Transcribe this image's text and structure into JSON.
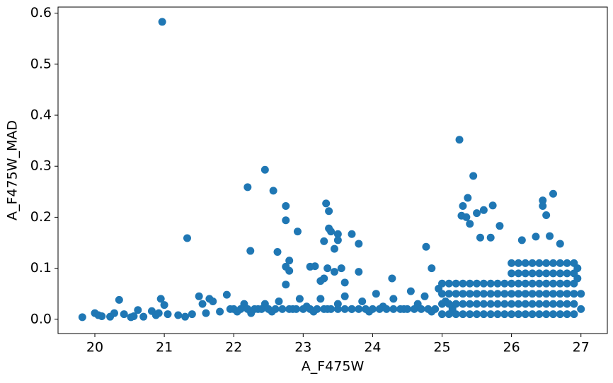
{
  "chart_data": {
    "type": "scatter",
    "xlabel": "A_F475W",
    "ylabel": "A_F475W_MAD",
    "color": "#1f77b4",
    "xlim": [
      19.47,
      27.38
    ],
    "ylim": [
      -0.028,
      0.612
    ],
    "xticks": [
      20,
      21,
      22,
      23,
      24,
      25,
      26,
      27
    ],
    "yticks": [
      {
        "value": 0,
        "label": "0.0"
      },
      0.1,
      0.2,
      0.3,
      0.4,
      0.5,
      0.6
    ],
    "x": [
      20.97,
      25.25,
      22.45,
      25.45,
      22.2,
      22.57,
      26.6,
      25.37,
      26.45,
      26.45,
      25.3,
      23.33,
      22.75,
      25.73,
      23.37,
      25.6,
      25.5,
      25.28,
      26.5,
      25.35,
      22.75,
      25.4,
      25.83,
      23.37,
      21.33,
      22.92,
      23.4,
      23.5,
      23.7,
      23.5,
      23.8,
      23.3,
      22.24,
      22.63,
      24.77,
      26.35,
      26.55,
      26.15,
      26.7,
      25.7,
      25.55,
      23.45,
      22.8,
      22.75,
      22.8,
      23.1,
      23.17,
      23.35,
      23.45,
      23.55,
      23.8,
      24.28,
      24.85,
      23.3,
      23.25,
      23.6,
      22.75,
      20.95,
      20.35,
      21.5,
      21.9,
      21.65,
      19.82,
      20.0,
      20.05,
      20.1,
      20.22,
      20.28,
      20.42,
      20.52,
      20.56,
      20.62,
      20.7,
      20.82,
      20.88,
      20.92,
      21.0,
      21.05,
      21.2,
      21.3,
      21.4,
      21.55,
      21.6,
      21.7,
      21.8,
      21.95,
      22.05,
      22.15,
      22.25,
      22.35,
      22.45,
      22.55,
      22.65,
      22.85,
      22.95,
      23.05,
      23.15,
      23.25,
      23.35,
      23.5,
      23.6,
      23.7,
      23.85,
      23.95,
      24.05,
      24.15,
      24.3,
      24.45,
      24.55,
      24.65,
      24.75,
      24.85,
      24.95,
      25.05,
      25.15,
      25.0,
      25.1,
      25.2,
      25.3,
      25.4,
      25.5,
      25.6,
      25.7,
      25.8,
      25.9,
      26.0,
      26.1,
      26.2,
      26.3,
      26.4,
      26.5,
      26.6,
      26.7,
      26.8,
      26.9,
      25.0,
      25.1,
      25.2,
      25.3,
      25.4,
      25.5,
      25.6,
      25.7,
      25.8,
      25.9,
      26.0,
      26.1,
      26.2,
      26.3,
      26.4,
      26.5,
      26.6,
      26.7,
      26.8,
      26.9,
      25.0,
      25.1,
      25.2,
      25.3,
      25.4,
      25.5,
      25.6,
      25.7,
      25.8,
      25.9,
      26.0,
      26.1,
      26.2,
      26.3,
      26.4,
      26.5,
      26.6,
      26.7,
      26.8,
      26.9,
      25.0,
      25.1,
      25.2,
      25.3,
      25.4,
      25.5,
      25.6,
      25.7,
      25.8,
      25.9,
      26.0,
      26.1,
      26.2,
      26.3,
      26.4,
      26.5,
      26.6,
      26.7,
      26.8,
      26.9,
      26.0,
      26.1,
      26.2,
      26.3,
      26.4,
      26.5,
      26.6,
      26.7,
      26.8,
      26.9,
      26.0,
      26.1,
      26.2,
      26.3,
      26.4,
      26.5,
      26.6,
      26.7,
      26.8,
      26.9,
      22.0,
      22.1,
      22.2,
      22.3,
      22.4,
      22.5,
      22.6,
      22.7,
      22.8,
      22.9,
      23.0,
      23.1,
      23.2,
      23.3,
      23.4,
      23.5,
      23.6,
      23.7,
      23.8,
      23.9,
      24.0,
      24.1,
      24.2,
      24.3,
      24.4,
      24.5,
      24.6,
      24.7,
      24.8,
      24.9,
      27.0,
      27.0,
      26.95,
      26.95
    ],
    "values": [
      0.583,
      0.352,
      0.293,
      0.281,
      0.259,
      0.252,
      0.246,
      0.238,
      0.233,
      0.222,
      0.222,
      0.227,
      0.222,
      0.223,
      0.212,
      0.214,
      0.208,
      0.203,
      0.204,
      0.2,
      0.194,
      0.187,
      0.183,
      0.178,
      0.159,
      0.172,
      0.172,
      0.167,
      0.167,
      0.155,
      0.148,
      0.153,
      0.134,
      0.132,
      0.142,
      0.162,
      0.163,
      0.155,
      0.148,
      0.16,
      0.16,
      0.138,
      0.115,
      0.103,
      0.095,
      0.103,
      0.104,
      0.1,
      0.093,
      0.1,
      0.093,
      0.08,
      0.1,
      0.08,
      0.075,
      0.072,
      0.068,
      0.04,
      0.038,
      0.045,
      0.048,
      0.04,
      0.004,
      0.012,
      0.008,
      0.006,
      0.005,
      0.012,
      0.01,
      0.004,
      0.006,
      0.018,
      0.005,
      0.016,
      0.008,
      0.012,
      0.028,
      0.01,
      0.008,
      0.005,
      0.01,
      0.03,
      0.012,
      0.035,
      0.015,
      0.02,
      0.015,
      0.03,
      0.012,
      0.02,
      0.03,
      0.015,
      0.035,
      0.02,
      0.04,
      0.025,
      0.015,
      0.04,
      0.02,
      0.03,
      0.045,
      0.02,
      0.035,
      0.015,
      0.05,
      0.025,
      0.04,
      0.02,
      0.055,
      0.03,
      0.045,
      0.015,
      0.06,
      0.035,
      0.02,
      0.01,
      0.01,
      0.01,
      0.01,
      0.01,
      0.01,
      0.01,
      0.01,
      0.01,
      0.01,
      0.01,
      0.01,
      0.01,
      0.01,
      0.01,
      0.01,
      0.01,
      0.01,
      0.01,
      0.01,
      0.03,
      0.03,
      0.03,
      0.03,
      0.03,
      0.03,
      0.03,
      0.03,
      0.03,
      0.03,
      0.03,
      0.03,
      0.03,
      0.03,
      0.03,
      0.03,
      0.03,
      0.03,
      0.03,
      0.03,
      0.05,
      0.05,
      0.05,
      0.05,
      0.05,
      0.05,
      0.05,
      0.05,
      0.05,
      0.05,
      0.05,
      0.05,
      0.05,
      0.05,
      0.05,
      0.05,
      0.05,
      0.05,
      0.05,
      0.05,
      0.07,
      0.07,
      0.07,
      0.07,
      0.07,
      0.07,
      0.07,
      0.07,
      0.07,
      0.07,
      0.07,
      0.07,
      0.07,
      0.07,
      0.07,
      0.07,
      0.07,
      0.07,
      0.07,
      0.07,
      0.09,
      0.09,
      0.09,
      0.09,
      0.09,
      0.09,
      0.09,
      0.09,
      0.09,
      0.09,
      0.11,
      0.11,
      0.11,
      0.11,
      0.11,
      0.11,
      0.11,
      0.11,
      0.11,
      0.11,
      0.02,
      0.02,
      0.02,
      0.02,
      0.02,
      0.02,
      0.02,
      0.02,
      0.02,
      0.02,
      0.02,
      0.02,
      0.02,
      0.02,
      0.02,
      0.02,
      0.02,
      0.02,
      0.02,
      0.02,
      0.02,
      0.02,
      0.02,
      0.02,
      0.02,
      0.02,
      0.02,
      0.02,
      0.02,
      0.02,
      0.02,
      0.05,
      0.1,
      0.08
    ]
  }
}
